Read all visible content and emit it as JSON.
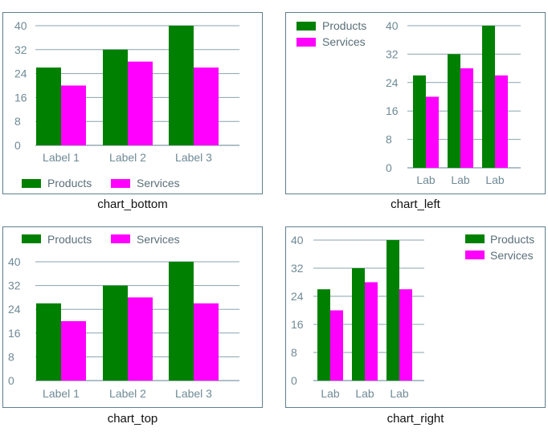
{
  "colors": {
    "products": "#008000",
    "services": "#ff00ff"
  },
  "captions": {
    "bottom": "chart_bottom",
    "left": "chart_left",
    "top": "chart_top",
    "right": "chart_right"
  },
  "chart_data": [
    {
      "id": "chart_bottom",
      "type": "bar",
      "legend_position": "bottom",
      "categories": [
        "Label 1",
        "Label 2",
        "Label 3"
      ],
      "series": [
        {
          "name": "Products",
          "values": [
            26,
            32,
            40
          ]
        },
        {
          "name": "Services",
          "values": [
            20,
            28,
            26
          ]
        }
      ],
      "yticks": [
        "0",
        "8",
        "16",
        "24",
        "32",
        "40"
      ],
      "ylim": [
        0,
        40
      ],
      "grid": true
    },
    {
      "id": "chart_left",
      "type": "bar",
      "legend_position": "left",
      "categories": [
        "Lab",
        "Lab",
        "Lab"
      ],
      "series": [
        {
          "name": "Products",
          "values": [
            26,
            32,
            40
          ]
        },
        {
          "name": "Services",
          "values": [
            20,
            28,
            26
          ]
        }
      ],
      "yticks": [
        "0",
        "8",
        "16",
        "24",
        "32",
        "40"
      ],
      "ylim": [
        0,
        40
      ],
      "grid": true
    },
    {
      "id": "chart_top",
      "type": "bar",
      "legend_position": "top",
      "categories": [
        "Label 1",
        "Label 2",
        "Label 3"
      ],
      "series": [
        {
          "name": "Products",
          "values": [
            26,
            32,
            40
          ]
        },
        {
          "name": "Services",
          "values": [
            20,
            28,
            26
          ]
        }
      ],
      "yticks": [
        "0",
        "8",
        "16",
        "24",
        "32",
        "40"
      ],
      "ylim": [
        0,
        40
      ],
      "grid": true
    },
    {
      "id": "chart_right",
      "type": "bar",
      "legend_position": "right",
      "categories": [
        "Lab",
        "Lab",
        "Lab"
      ],
      "series": [
        {
          "name": "Products",
          "values": [
            26,
            32,
            40
          ]
        },
        {
          "name": "Services",
          "values": [
            20,
            28,
            26
          ]
        }
      ],
      "yticks": [
        "0",
        "8",
        "16",
        "24",
        "32",
        "40"
      ],
      "ylim": [
        0,
        40
      ],
      "grid": true
    }
  ]
}
